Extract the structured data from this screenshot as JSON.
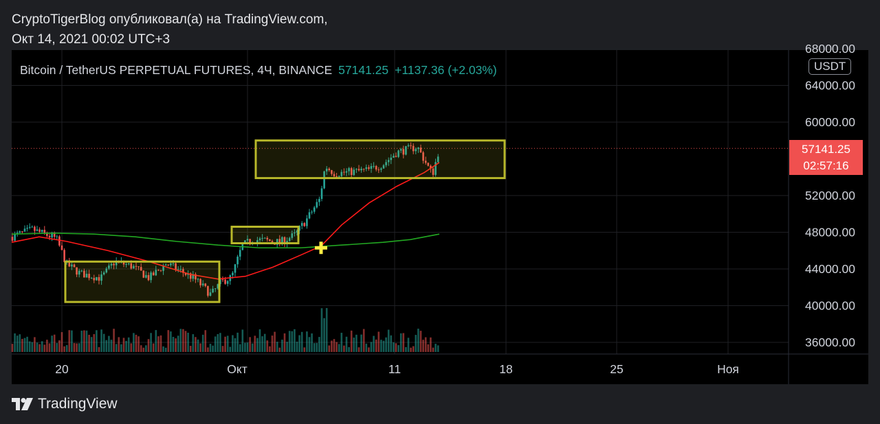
{
  "publication": {
    "line1": "CryptoTigerBlog опубликовал(а) на TradingView.com,",
    "line2": "Окт 14, 2021 00:02 UTC+3"
  },
  "header": {
    "symbol": "Bitcoin / TetherUS PERPETUAL FUTURES, 4Ч, BINANCE",
    "last_price": "57141.25",
    "change": "+1137.36 (+2.03%)"
  },
  "currency": "USDT",
  "price_axis": [
    "68000.00",
    "64000.00",
    "60000.00",
    "52000.00",
    "48000.00",
    "44000.00",
    "40000.00",
    "36000.00"
  ],
  "current_price_tag": {
    "price": "57141.25",
    "countdown": "02:57:16"
  },
  "time_axis": [
    "20",
    "Окт",
    "11",
    "18",
    "25",
    "Ноя"
  ],
  "colors": {
    "up": "#26a69a",
    "down": "#ef5350",
    "ma_fast": "#ff1a1a",
    "ma_slow": "#22a722",
    "highlight_box": "#b8b82a",
    "marker": "#ffee44"
  },
  "logo": {
    "icon": "tradingview-logo-icon",
    "text": "TradingView"
  }
}
